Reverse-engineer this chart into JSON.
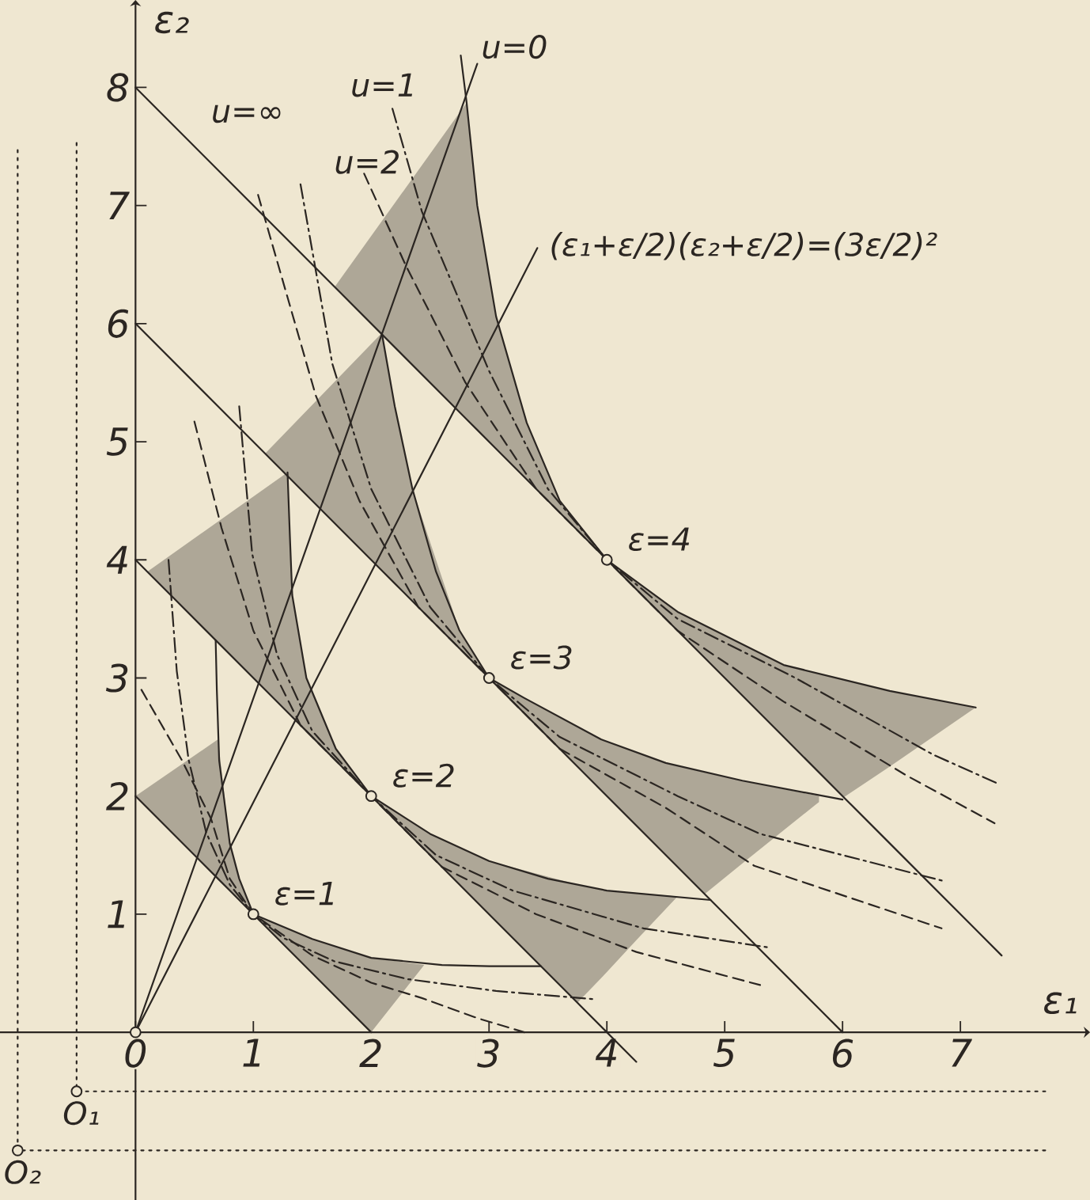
{
  "chart_data": {
    "type": "line",
    "xlabel": "ε₁",
    "ylabel": "ε₂",
    "xlim": [
      -1.15,
      8.1
    ],
    "ylim": [
      -1.42,
      8.74
    ],
    "xticks": [
      0,
      1,
      2,
      3,
      4,
      5,
      6,
      7
    ],
    "yticks": [
      1,
      2,
      3,
      4,
      5,
      6,
      7,
      8
    ],
    "series": [
      {
        "color": "#2b2622",
        "x": [
          0,
          0.7,
          0.8,
          0.88,
          1,
          1.5,
          2,
          2.45
        ],
        "values": [
          2,
          1.3,
          1.2,
          1.12,
          1,
          0.5,
          0,
          null
        ],
        "lower": [
          2,
          1.3,
          1.2,
          1.12,
          1,
          0.5,
          0,
          0.57
        ],
        "upper": [
          2,
          2.48,
          1.6,
          1.3,
          1,
          0.79,
          0.63,
          0.57
        ]
      },
      {
        "color": "#2b2622",
        "x": [
          0,
          0.1,
          1.29,
          1.33,
          1.45,
          1.7,
          2,
          2.5,
          3,
          3.75,
          4.0,
          4.25,
          4.6
        ],
        "values": [
          4,
          3.9,
          2.71,
          2.67,
          2.55,
          2.3,
          2,
          1.5,
          1,
          0.25,
          0,
          -0.25,
          null
        ],
        "lower": [
          null,
          3.9,
          2.71,
          2.67,
          2.55,
          2.3,
          2,
          1.5,
          1,
          0.25,
          0.51,
          0.78,
          1.15
        ],
        "upper": [
          null,
          3.9,
          4.74,
          3.7,
          3.0,
          2.4,
          2,
          1.68,
          1.45,
          1.25,
          1.2,
          1.18,
          1.15
        ]
      },
      {
        "color": "#2b2622",
        "x": [
          0,
          1.1,
          2.09,
          2.2,
          2.35,
          2.75,
          3,
          3.3,
          3.95,
          4.5,
          4.83,
          5.15,
          5.8,
          6
        ],
        "values": [
          6,
          4.9,
          3.91,
          3.8,
          3.65,
          3.25,
          3,
          2.7,
          2.05,
          1.5,
          1.17,
          0.85,
          0.2,
          0
        ],
        "lower": [
          null,
          4.9,
          3.91,
          3.8,
          3.65,
          3.25,
          3,
          2.7,
          2.05,
          1.5,
          1.17,
          1.43,
          1.95,
          null
        ],
        "upper": [
          null,
          4.9,
          5.92,
          5.3,
          4.6,
          3.4,
          3,
          2.83,
          2.48,
          2.28,
          2.2,
          2.13,
          2.0,
          null
        ]
      },
      {
        "color": "#2b2622",
        "x": [
          0,
          1.69,
          2.81,
          2.9,
          3.06,
          3.32,
          3.6,
          4,
          4.6,
          5.5,
          6.01,
          6.4,
          7.13,
          7.35
        ],
        "values": [
          8,
          6.31,
          5.19,
          5.1,
          4.94,
          4.68,
          4.4,
          4,
          3.4,
          2.5,
          1.99,
          1.6,
          0.87,
          0.65
        ],
        "lower": [
          null,
          6.31,
          5.19,
          5.1,
          4.94,
          4.68,
          4.4,
          4,
          3.4,
          2.5,
          1.99,
          2.25,
          2.75,
          null
        ],
        "upper": [
          null,
          6.31,
          7.87,
          7.0,
          6.06,
          5.16,
          4.5,
          4,
          3.56,
          3.11,
          2.99,
          2.89,
          2.75,
          null
        ]
      },
      {
        "color": "#2b2622",
        "x": [
          0.68,
          0.69,
          0.71,
          0.8,
          0.88,
          1,
          1.5,
          2,
          2.6,
          3.0,
          3.44
        ],
        "values": [
          3.32,
          2.9,
          2.3,
          1.6,
          1.3,
          1,
          0.79,
          0.63,
          0.57,
          0.56,
          0.56
        ]
      },
      {
        "color": "#2b2622",
        "x": [
          1.29,
          1.31,
          1.33,
          1.45,
          1.7,
          2,
          2.5,
          3,
          3.5,
          4,
          4.88
        ],
        "values": [
          4.74,
          4.2,
          3.7,
          3.0,
          2.4,
          2,
          1.68,
          1.45,
          1.3,
          1.2,
          1.12
        ]
      },
      {
        "color": "#2b2622",
        "x": [
          2.09,
          2.2,
          2.35,
          2.55,
          2.75,
          3,
          3.3,
          3.95,
          4.5,
          5.15,
          6.0
        ],
        "values": [
          5.92,
          5.3,
          4.6,
          3.9,
          3.4,
          3,
          2.83,
          2.48,
          2.28,
          2.13,
          1.97
        ]
      },
      {
        "color": "#2b2622",
        "x": [
          2.76,
          2.81,
          2.9,
          3.06,
          3.32,
          3.6,
          4,
          4.6,
          5.5,
          6.4,
          7.13
        ],
        "values": [
          8.27,
          7.87,
          7.0,
          6.06,
          5.16,
          4.5,
          4,
          3.56,
          3.11,
          2.89,
          2.75
        ]
      },
      {
        "color": "#2b2622",
        "line_style": "dashdot",
        "x": [
          0.28,
          0.35,
          0.45,
          0.6,
          0.8,
          1,
          1.25,
          1.69,
          2.31,
          3.06,
          3.9
        ],
        "values": [
          4.0,
          3.06,
          2.31,
          1.69,
          1.25,
          1,
          0.8,
          0.6,
          0.45,
          0.35,
          0.28
        ]
      },
      {
        "color": "#2b2622",
        "line_style": "dashdot",
        "x": [
          0.88,
          0.99,
          1.2,
          1.5,
          2,
          2.55,
          3.2,
          4.31,
          5.36
        ],
        "values": [
          5.3,
          4.05,
          3.2,
          2.55,
          2,
          1.5,
          1.2,
          0.88,
          0.72
        ]
      },
      {
        "color": "#2b2622",
        "line_style": "dashdot",
        "x": [
          1.4,
          1.67,
          2.0,
          2.5,
          3,
          3.6,
          4.6,
          5.3,
          6.86
        ],
        "values": [
          7.18,
          5.66,
          4.6,
          3.6,
          3,
          2.5,
          2.0,
          1.68,
          1.28
        ]
      },
      {
        "color": "#2b2622",
        "line_style": "dashdot",
        "x": [
          2.18,
          2.43,
          3.0,
          3.5,
          4,
          4.6,
          5.6,
          6.77,
          7.33
        ],
        "values": [
          7.82,
          6.95,
          5.6,
          4.6,
          4,
          3.5,
          3.0,
          2.35,
          2.1
        ]
      },
      {
        "color": "#2b2622",
        "line_style": "dashed",
        "x": [
          0.05,
          0.39,
          0.64,
          0.8,
          1,
          1.5,
          2,
          2.43,
          2.9,
          3.3
        ],
        "values": [
          2.9,
          2.31,
          1.81,
          1.3,
          1,
          0.65,
          0.42,
          0.29,
          0.12,
          0.0
        ]
      },
      {
        "color": "#2b2622",
        "line_style": "dashed",
        "x": [
          0.5,
          0.73,
          1.0,
          1.4,
          2,
          2.6,
          3.4,
          4.25,
          5.3
        ],
        "values": [
          5.17,
          4.27,
          3.4,
          2.6,
          2,
          1.4,
          1.0,
          0.68,
          0.4
        ]
      },
      {
        "color": "#2b2622",
        "line_style": "dashed",
        "x": [
          1.04,
          1.53,
          1.9,
          2.4,
          3,
          3.6,
          4.5,
          5.25,
          6.84
        ],
        "values": [
          7.09,
          5.39,
          4.5,
          3.6,
          3,
          2.4,
          1.9,
          1.41,
          0.88
        ]
      },
      {
        "color": "#2b2622",
        "line_style": "dashed",
        "x": [
          1.94,
          2.29,
          2.8,
          3.4,
          4,
          4.6,
          5.5,
          6.55,
          7.29
        ],
        "values": [
          7.27,
          6.5,
          5.5,
          4.6,
          4,
          3.4,
          2.8,
          2.17,
          1.77
        ]
      },
      {
        "color": "#2b2622",
        "x": [
          0,
          2.9
        ],
        "values": [
          0,
          8.2
        ]
      },
      {
        "color": "#2b2622",
        "x": [
          0,
          3.41
        ],
        "values": [
          0,
          6.64
        ]
      },
      {
        "color": "#2b2622",
        "line_style": "dotted",
        "x": [
          -0.5,
          -0.5,
          7.72
        ],
        "values": [
          7.53,
          -0.5,
          -0.5
        ]
      },
      {
        "color": "#2b2622",
        "line_style": "dotted",
        "x": [
          -1,
          -1,
          7.72
        ],
        "values": [
          7.47,
          -1,
          -1
        ]
      },
      {
        "type": "scatter",
        "marker": "circle",
        "color": "#2b2622",
        "x": [
          0,
          1,
          2,
          3,
          4,
          -0.5,
          -1
        ],
        "values": [
          0,
          1,
          2,
          3,
          4,
          -0.5,
          -1
        ]
      }
    ],
    "annotations": [
      "u=∞",
      "u=1",
      "u=2",
      "u=0",
      "(ε₁+ε/2)(ε₂+ε/2)=(3ε/2)²",
      {
        "text": "ε=1",
        "x": 1,
        "y": 1
      },
      {
        "text": "ε=2",
        "x": 2,
        "y": 2
      },
      {
        "text": "ε=3",
        "x": 3,
        "y": 3
      },
      {
        "text": "ε=4",
        "x": 4,
        "y": 4
      },
      {
        "text": "O₁",
        "x": -0.5,
        "y": -0.5
      },
      {
        "text": "O₂",
        "x": -1,
        "y": -1
      }
    ]
  }
}
